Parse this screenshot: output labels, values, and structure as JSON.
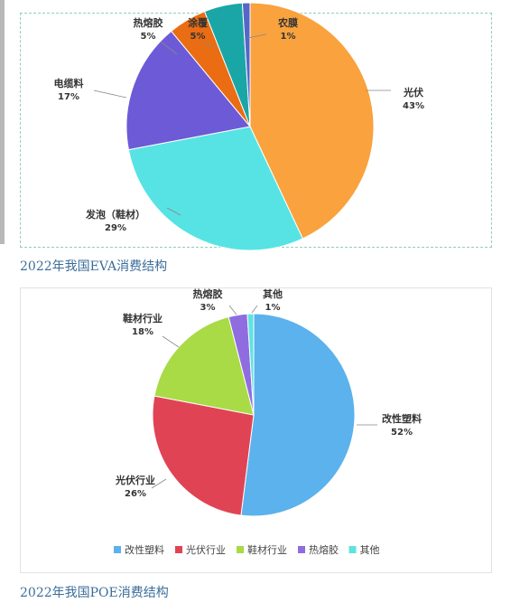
{
  "captions": {
    "eva": "2022年我国EVA消费结构",
    "poe": "2022年我国POE消费结构"
  },
  "chart_data": [
    {
      "type": "pie",
      "title": "",
      "slices": [
        {
          "label": "光伏",
          "pct_label": "43%",
          "value": 43,
          "color": "#f9a23e"
        },
        {
          "label": "发泡（鞋材）",
          "pct_label": "29%",
          "value": 29,
          "color": "#57e3e3"
        },
        {
          "label": "电缆料",
          "pct_label": "17%",
          "value": 17,
          "color": "#6d5ad6"
        },
        {
          "label": "热熔胶",
          "pct_label": "5%",
          "value": 5,
          "color": "#ea6c13"
        },
        {
          "label": "涂覆",
          "pct_label": "5%",
          "value": 5,
          "color": "#1aa6a6"
        },
        {
          "label": "农膜",
          "pct_label": "1%",
          "value": 1,
          "color": "#5566c8"
        }
      ]
    },
    {
      "type": "pie",
      "title": "",
      "legend_position": "bottom",
      "slices": [
        {
          "label": "改性塑料",
          "pct_label": "52%",
          "value": 52,
          "color": "#5bb2ec"
        },
        {
          "label": "光伏行业",
          "pct_label": "26%",
          "value": 26,
          "color": "#e04454"
        },
        {
          "label": "鞋材行业",
          "pct_label": "18%",
          "value": 18,
          "color": "#a8db45"
        },
        {
          "label": "热熔胶",
          "pct_label": "3%",
          "value": 3,
          "color": "#8f6de0"
        },
        {
          "label": "其他",
          "pct_label": "1%",
          "value": 1,
          "color": "#5fe3e0"
        }
      ]
    }
  ]
}
